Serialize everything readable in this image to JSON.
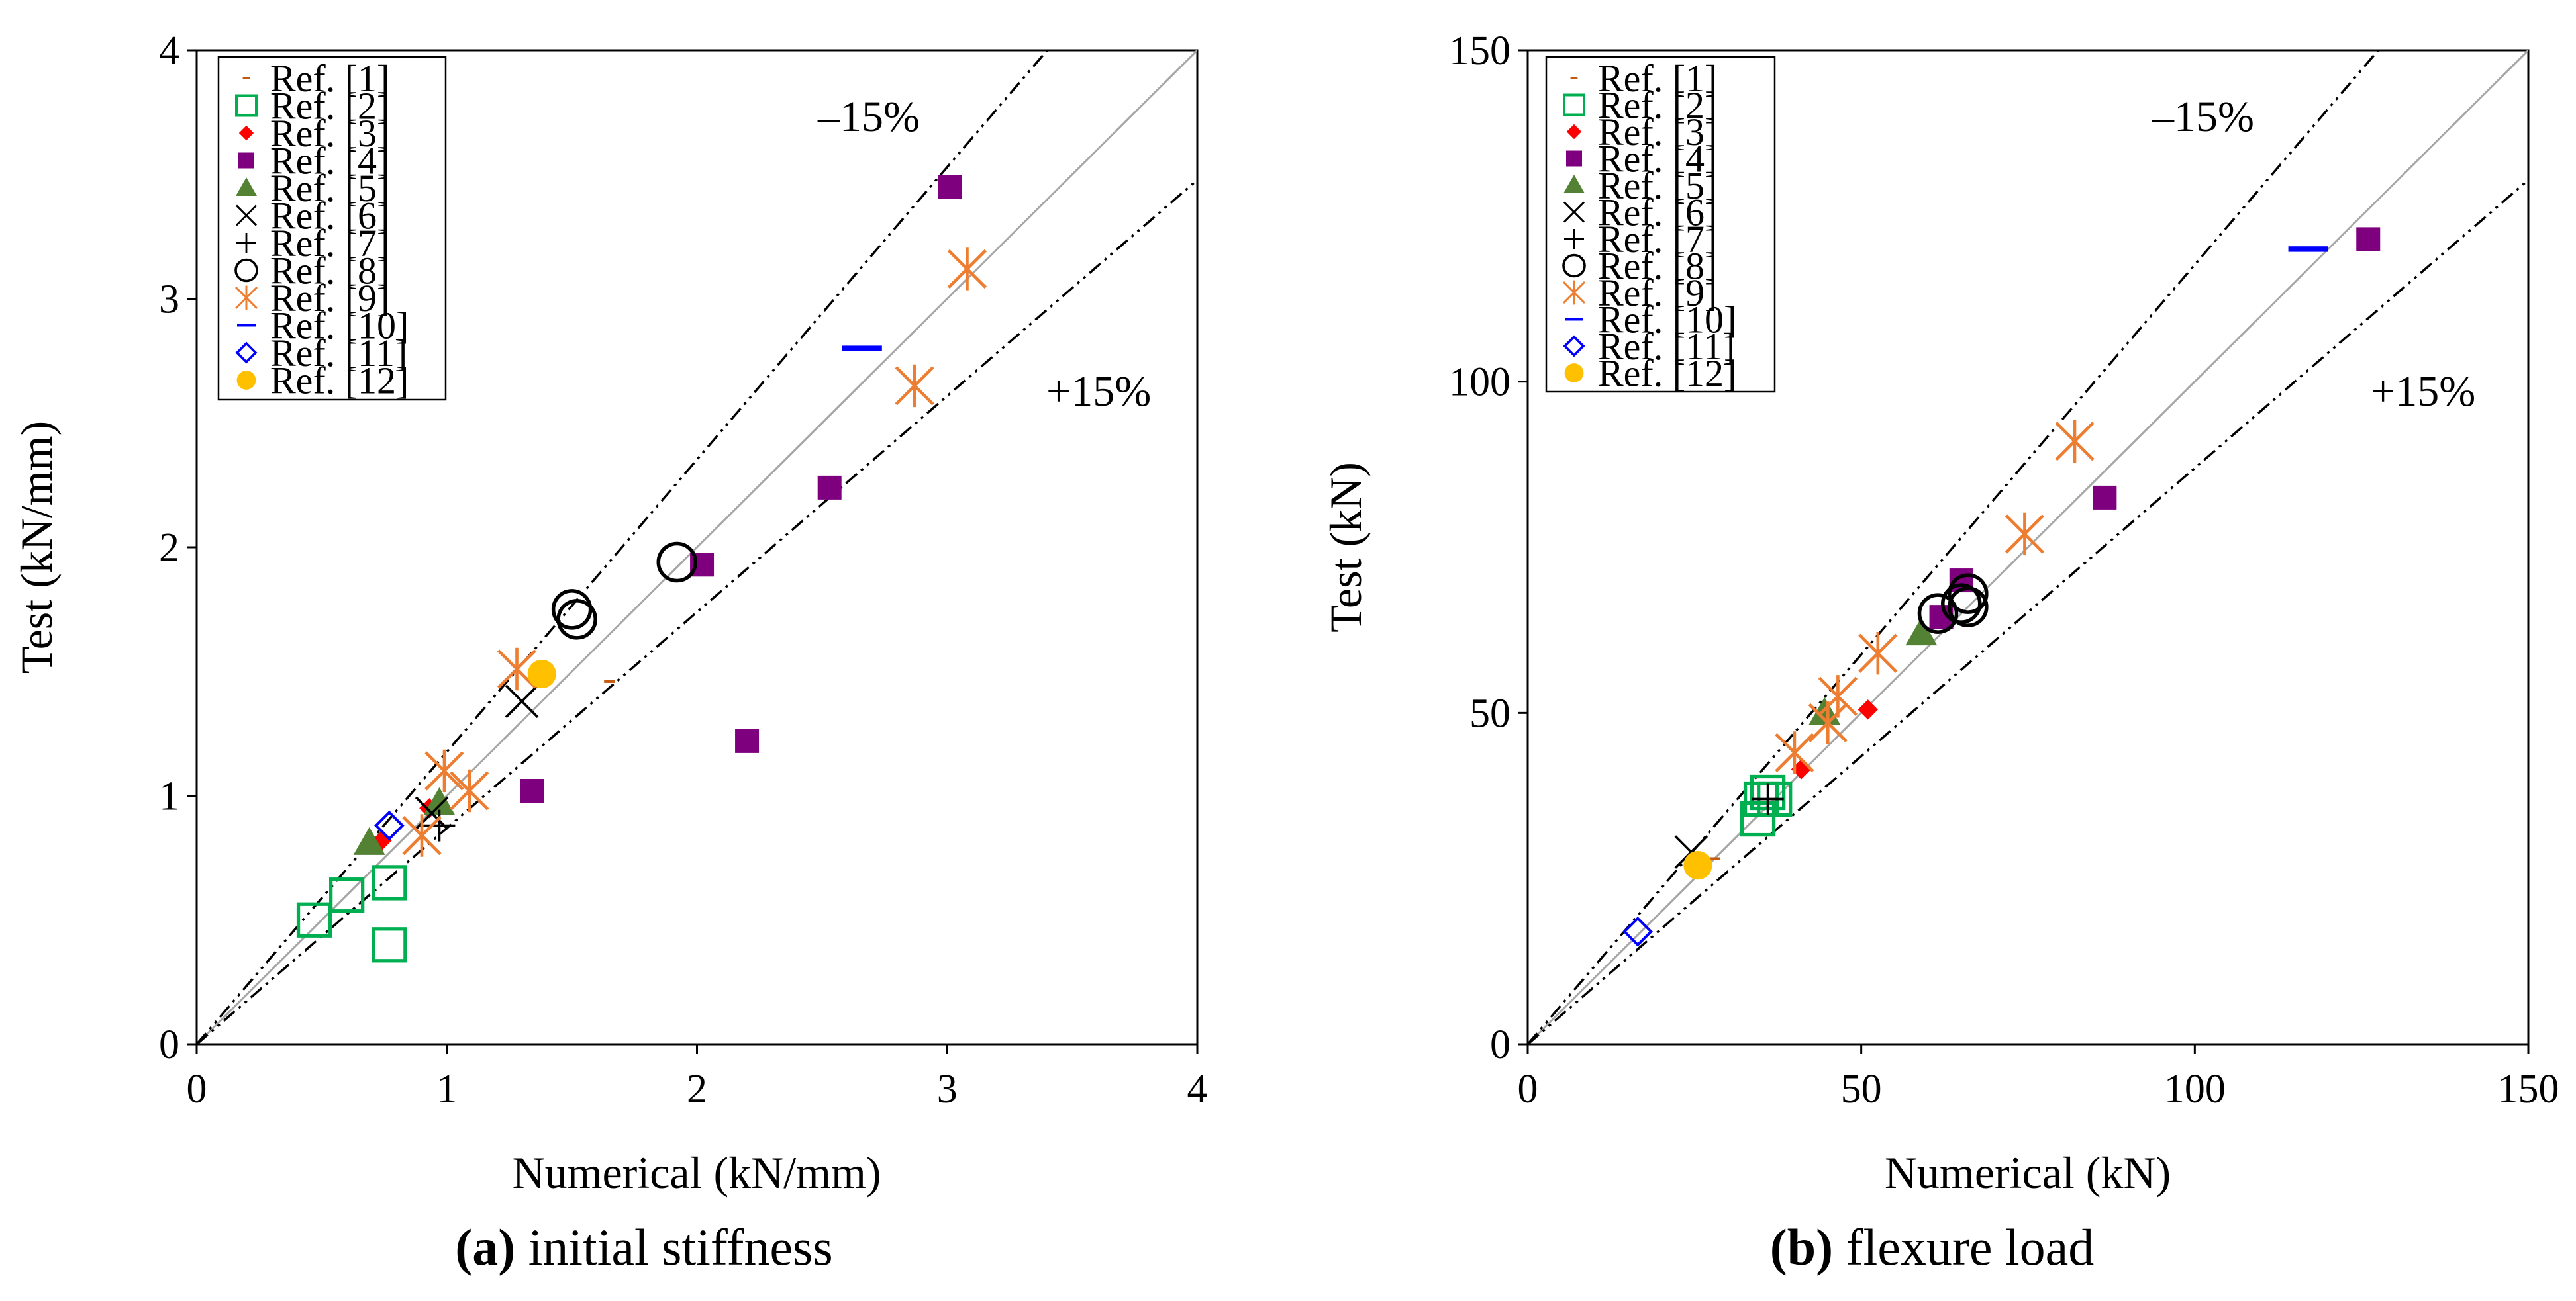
{
  "colors": {
    "ref1": "#c55a11",
    "ref2": "#00b050",
    "ref3": "#ff0000",
    "ref4": "#7f007f",
    "ref5": "#548235",
    "ref6": "#000000",
    "ref7": "#000000",
    "ref8": "#000000",
    "ref9": "#ed7d31",
    "ref10": "#0000ff",
    "ref11": "#0000ff",
    "ref12": "#ffc000"
  },
  "legend": [
    {
      "key": "ref1",
      "label": "Ref. [1]",
      "marker": "dash"
    },
    {
      "key": "ref2",
      "label": "Ref. [2]",
      "marker": "square-open"
    },
    {
      "key": "ref3",
      "label": "Ref. [3]",
      "marker": "diamond"
    },
    {
      "key": "ref4",
      "label": "Ref. [4]",
      "marker": "square"
    },
    {
      "key": "ref5",
      "label": "Ref. [5]",
      "marker": "triangle"
    },
    {
      "key": "ref6",
      "label": "Ref. [6]",
      "marker": "x"
    },
    {
      "key": "ref7",
      "label": "Ref. [7]",
      "marker": "plus"
    },
    {
      "key": "ref8",
      "label": "Ref. [8]",
      "marker": "circle-open"
    },
    {
      "key": "ref9",
      "label": "Ref. [9]",
      "marker": "asterisk"
    },
    {
      "key": "ref10",
      "label": "Ref. [10]",
      "marker": "bar"
    },
    {
      "key": "ref11",
      "label": "Ref. [11]",
      "marker": "diamond-open"
    },
    {
      "key": "ref12",
      "label": "Ref. [12]",
      "marker": "circle"
    }
  ],
  "chart_data": [
    {
      "type": "scatter",
      "id": "a",
      "caption_letter": "(a)",
      "caption_text": " initial stiffness",
      "xlabel": "Numerical (kN/mm)",
      "ylabel": "Test (kN/mm)",
      "xlim": [
        0,
        4
      ],
      "ylim": [
        0,
        4
      ],
      "xticks": [
        0,
        1,
        2,
        3,
        4
      ],
      "yticks": [
        0,
        1,
        2,
        3,
        4
      ],
      "band_upper_label": "–15%",
      "band_lower_label": "+15%",
      "band_factor": 0.15,
      "series": [
        {
          "name": "Ref. [1]",
          "key": "ref1",
          "points": [
            [
              1.65,
              1.46
            ]
          ]
        },
        {
          "name": "Ref. [2]",
          "key": "ref2",
          "points": [
            [
              0.47,
              0.5
            ],
            [
              0.6,
              0.6
            ],
            [
              0.77,
              0.65
            ],
            [
              0.77,
              0.4
            ]
          ]
        },
        {
          "name": "Ref. [3]",
          "key": "ref3",
          "points": [
            [
              0.74,
              0.82
            ],
            [
              0.93,
              0.95
            ]
          ]
        },
        {
          "name": "Ref. [4]",
          "key": "ref4",
          "points": [
            [
              3.01,
              3.45
            ],
            [
              2.53,
              2.24
            ],
            [
              2.02,
              1.93
            ],
            [
              2.2,
              1.22
            ],
            [
              1.34,
              1.02
            ]
          ]
        },
        {
          "name": "Ref. [5]",
          "key": "ref5",
          "points": [
            [
              0.69,
              0.81
            ],
            [
              0.97,
              0.97
            ]
          ]
        },
        {
          "name": "Ref. [6]",
          "key": "ref6",
          "points": [
            [
              1.3,
              1.38
            ],
            [
              0.94,
              0.93
            ]
          ]
        },
        {
          "name": "Ref. [7]",
          "key": "ref7",
          "points": [
            [
              0.97,
              0.88
            ]
          ]
        },
        {
          "name": "Ref. [8]",
          "key": "ref8",
          "points": [
            [
              1.5,
              1.75
            ],
            [
              1.52,
              1.71
            ],
            [
              1.92,
              1.94
            ]
          ]
        },
        {
          "name": "Ref. [9]",
          "key": "ref9",
          "points": [
            [
              3.08,
              3.12
            ],
            [
              2.87,
              2.65
            ],
            [
              1.28,
              1.51
            ],
            [
              0.99,
              1.1
            ],
            [
              1.09,
              1.02
            ],
            [
              0.9,
              0.84
            ]
          ]
        },
        {
          "name": "Ref. [10]",
          "key": "ref10",
          "points": [
            [
              2.66,
              2.8
            ]
          ]
        },
        {
          "name": "Ref. [11]",
          "key": "ref11",
          "points": [
            [
              0.77,
              0.88
            ]
          ]
        },
        {
          "name": "Ref. [12]",
          "key": "ref12",
          "points": [
            [
              1.38,
              1.49
            ]
          ]
        }
      ]
    },
    {
      "type": "scatter",
      "id": "b",
      "caption_letter": "(b)",
      "caption_text": " flexure load",
      "xlabel": "Numerical (kN)",
      "ylabel": "Test (kN)",
      "xlim": [
        0,
        150
      ],
      "ylim": [
        0,
        150
      ],
      "xticks": [
        0,
        50,
        100,
        150
      ],
      "yticks": [
        0,
        50,
        100,
        150
      ],
      "band_upper_label": "–15%",
      "band_lower_label": "+15%",
      "band_factor": 0.15,
      "series": [
        {
          "name": "Ref. [1]",
          "key": "ref1",
          "points": [
            [
              28,
              28
            ]
          ]
        },
        {
          "name": "Ref. [2]",
          "key": "ref2",
          "points": [
            [
              34.5,
              34
            ],
            [
              35,
              37
            ],
            [
              36,
              38
            ],
            [
              37,
              37
            ]
          ]
        },
        {
          "name": "Ref. [3]",
          "key": "ref3",
          "points": [
            [
              51,
              50.5
            ],
            [
              41,
              41.5
            ]
          ]
        },
        {
          "name": "Ref. [4]",
          "key": "ref4",
          "points": [
            [
              126,
              121.5
            ],
            [
              86.5,
              82.5
            ],
            [
              65,
              70
            ],
            [
              62,
              64.5
            ]
          ]
        },
        {
          "name": "Ref. [5]",
          "key": "ref5",
          "points": [
            [
              59,
              62
            ],
            [
              44.5,
              50
            ]
          ]
        },
        {
          "name": "Ref. [6]",
          "key": "ref6",
          "points": [
            [
              24.5,
              29
            ]
          ]
        },
        {
          "name": "Ref. [7]",
          "key": "ref7",
          "points": [
            [
              36,
              37
            ]
          ]
        },
        {
          "name": "Ref. [8]",
          "key": "ref8",
          "points": [
            [
              61.5,
              65
            ],
            [
              65,
              66.5
            ],
            [
              66,
              68
            ],
            [
              66,
              66
            ]
          ]
        },
        {
          "name": "Ref. [9]",
          "key": "ref9",
          "points": [
            [
              82,
              91
            ],
            [
              74.5,
              77
            ],
            [
              52.5,
              59
            ],
            [
              46.5,
              52.5
            ],
            [
              45,
              48.5
            ],
            [
              40,
              44
            ]
          ]
        },
        {
          "name": "Ref. [10]",
          "key": "ref10",
          "points": [
            [
              117,
              120
            ]
          ]
        },
        {
          "name": "Ref. [11]",
          "key": "ref11",
          "points": [
            [
              16.5,
              17
            ]
          ]
        },
        {
          "name": "Ref. [12]",
          "key": "ref12",
          "points": [
            [
              25.5,
              27
            ]
          ]
        }
      ]
    }
  ]
}
